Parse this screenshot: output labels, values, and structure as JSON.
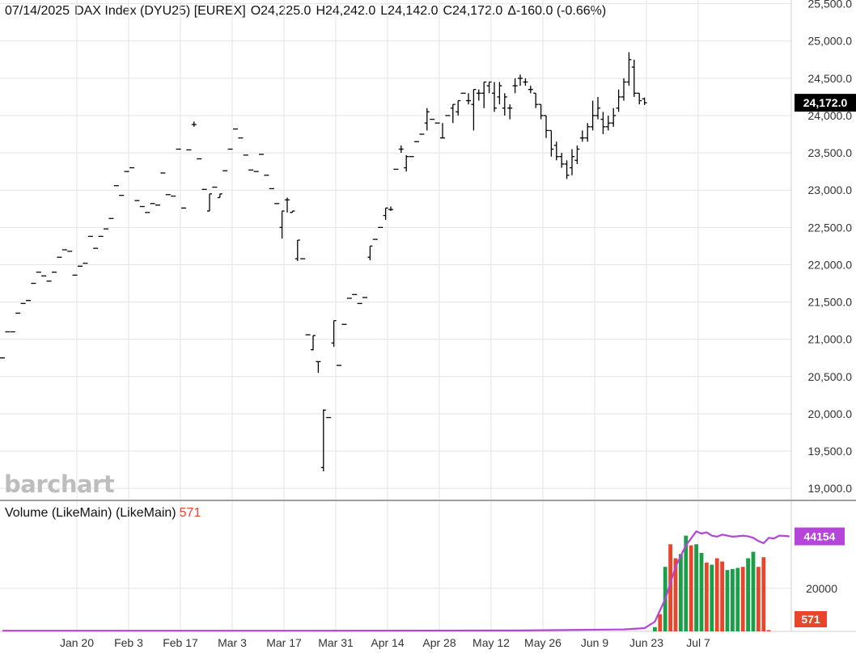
{
  "header": {
    "date": "07/14/2025",
    "symbol": "DAX Index (DYU25) [EUREX]",
    "open": "O24,225.0",
    "high": "H24,242.0",
    "low": "L24,142.0",
    "close": "C24,172.0",
    "change": "Δ-160.0 (-0.66%)"
  },
  "logo": "barchart",
  "volume_panel": {
    "title": "Volume (LikeMain)  (LikeMain)",
    "last_value": "571"
  },
  "colors": {
    "up": "#1a9e47",
    "down": "#e8452c",
    "ma": "#b445d8",
    "price_tag": "#000000",
    "grid": "#e3e3e3"
  },
  "chart_data": [
    {
      "type": "ohlc",
      "title": "",
      "y_range": [
        18850,
        25550
      ],
      "y_ticks": [
        "25,500.0",
        "25,000.0",
        "24,500.0",
        "24,000.0",
        "23,500.0",
        "23,000.0",
        "22,500.0",
        "22,000.0",
        "21,500.0",
        "21,000.0",
        "20,500.0",
        "20,000.0",
        "19,500.0",
        "19,000.0"
      ],
      "y_tick_values": [
        25500,
        25000,
        24500,
        24000,
        23500,
        23000,
        22500,
        22000,
        21500,
        21000,
        20500,
        20000,
        19500,
        19000
      ],
      "x_ticks": [
        "Jan 20",
        "Feb 3",
        "Feb 17",
        "Mar 3",
        "Mar 17",
        "Mar 31",
        "Apr 14",
        "Apr 28",
        "May 12",
        "May 26",
        "Jun 9",
        "Jun 23",
        "Jul 7"
      ],
      "x_tick_index": [
        10,
        20,
        30,
        40,
        50,
        60,
        70,
        80,
        90,
        100,
        110,
        120,
        130
      ],
      "last_price_label": "24,172.0",
      "last_price": 24172,
      "bars": [
        [
          20750,
          20750,
          20750,
          20750
        ],
        [
          21100,
          21100,
          21100,
          21100
        ],
        [
          21100,
          21100,
          21100,
          21100
        ],
        [
          21350,
          21350,
          21350,
          21350
        ],
        [
          21480,
          21480,
          21480,
          21480
        ],
        [
          21520,
          21520,
          21520,
          21520
        ],
        [
          21750,
          21750,
          21750,
          21750
        ],
        [
          21900,
          21900,
          21900,
          21900
        ],
        [
          21850,
          21850,
          21850,
          21850
        ],
        [
          21780,
          21780,
          21780,
          21780
        ],
        [
          21900,
          21900,
          21900,
          21900
        ],
        [
          22100,
          22100,
          22100,
          22100
        ],
        [
          22200,
          22200,
          22200,
          22200
        ],
        [
          22180,
          22180,
          22180,
          22180
        ],
        [
          21860,
          21860,
          21860,
          21860
        ],
        [
          21980,
          21980,
          21980,
          21980
        ],
        [
          22020,
          22020,
          22020,
          22020
        ],
        [
          22380,
          22380,
          22380,
          22380
        ],
        [
          22220,
          22220,
          22220,
          22220
        ],
        [
          22380,
          22380,
          22380,
          22380
        ],
        [
          22480,
          22480,
          22480,
          22480
        ],
        [
          22620,
          22620,
          22620,
          22620
        ],
        [
          23060,
          23060,
          23060,
          23060
        ],
        [
          22930,
          22930,
          22930,
          22930
        ],
        [
          23250,
          23250,
          23250,
          23250
        ],
        [
          23300,
          23300,
          23300,
          23300
        ],
        [
          22860,
          22860,
          22860,
          22860
        ],
        [
          22780,
          22780,
          22780,
          22780
        ],
        [
          22700,
          22700,
          22700,
          22700
        ],
        [
          22820,
          22820,
          22820,
          22820
        ],
        [
          22800,
          22800,
          22800,
          22800
        ],
        [
          23230,
          23230,
          23230,
          23230
        ],
        [
          22940,
          22940,
          22940,
          22940
        ],
        [
          22920,
          22920,
          22920,
          22920
        ],
        [
          23550,
          23550,
          23550,
          23550
        ],
        [
          22760,
          22760,
          22760,
          22760
        ],
        [
          23540,
          23540,
          23540,
          23540
        ],
        [
          23880,
          23880,
          23920,
          23850
        ],
        [
          23420,
          23420,
          23420,
          23420
        ],
        [
          23010,
          23010,
          23010,
          23010
        ],
        [
          22720,
          22950,
          22950,
          22720
        ],
        [
          23040,
          23040,
          23040,
          23040
        ],
        [
          22900,
          22950,
          22950,
          22900
        ],
        [
          23260,
          23260,
          23260,
          23260
        ],
        [
          23550,
          23550,
          23550,
          23550
        ],
        [
          23820,
          23820,
          23820,
          23820
        ],
        [
          23700,
          23700,
          23700,
          23700
        ],
        [
          23470,
          23470,
          23470,
          23470
        ],
        [
          23270,
          23270,
          23270,
          23270
        ],
        [
          23250,
          23250,
          23250,
          23250
        ],
        [
          23480,
          23480,
          23480,
          23480
        ],
        [
          23200,
          23200,
          23200,
          23200
        ],
        [
          23020,
          23020,
          23020,
          23020
        ],
        [
          22820,
          22820,
          22820,
          22820
        ],
        [
          22500,
          22720,
          22720,
          22350
        ],
        [
          22870,
          22870,
          22900,
          22700
        ],
        [
          22700,
          22720,
          22720,
          22700
        ],
        [
          22080,
          22330,
          22330,
          22050
        ],
        [
          22080,
          22080,
          22080,
          22080
        ],
        [
          21060,
          21060,
          21060,
          21060
        ],
        [
          20860,
          21050,
          21050,
          20850
        ],
        [
          20700,
          20700,
          20700,
          20550
        ],
        [
          19280,
          20050,
          20060,
          19230
        ],
        [
          19950,
          19950,
          19950,
          19950
        ],
        [
          20950,
          21250,
          21250,
          20900
        ],
        [
          20650,
          20650,
          20650,
          20650
        ],
        [
          21200,
          21200,
          21200,
          21200
        ],
        [
          21550,
          21550,
          21550,
          21550
        ],
        [
          21600,
          21600,
          21600,
          21600
        ],
        [
          21480,
          21480,
          21480,
          21480
        ],
        [
          21560,
          21560,
          21560,
          21560
        ],
        [
          22100,
          22250,
          22250,
          22060
        ],
        [
          22340,
          22340,
          22340,
          22340
        ],
        [
          22500,
          22500,
          22500,
          22500
        ],
        [
          22660,
          22760,
          22760,
          22600
        ],
        [
          22740,
          22740,
          22780,
          22720
        ],
        [
          23280,
          23280,
          23280,
          23280
        ],
        [
          23550,
          23550,
          23600,
          23500
        ],
        [
          23300,
          23450,
          23470,
          23250
        ],
        [
          23450,
          23450,
          23450,
          23450
        ],
        [
          23650,
          23650,
          23650,
          23650
        ],
        [
          23750,
          23750,
          23750,
          23750
        ],
        [
          23900,
          24050,
          24100,
          23800
        ],
        [
          23950,
          23950,
          23950,
          23950
        ],
        [
          23900,
          23900,
          23900,
          23900
        ],
        [
          23700,
          23700,
          23900,
          23700
        ],
        [
          24000,
          24000,
          24000,
          24000
        ],
        [
          24100,
          24150,
          24150,
          23900
        ],
        [
          24050,
          24200,
          24200,
          24000
        ],
        [
          24300,
          24300,
          24300,
          24300
        ],
        [
          24200,
          24200,
          24300,
          24150
        ],
        [
          24150,
          24350,
          24350,
          23800
        ],
        [
          24300,
          24300,
          24350,
          24200
        ],
        [
          24300,
          24450,
          24450,
          24100
        ],
        [
          24400,
          24450,
          24450,
          24300
        ],
        [
          24300,
          24100,
          24450,
          24050
        ],
        [
          24250,
          24400,
          24450,
          24150
        ],
        [
          24100,
          24250,
          24300,
          24000
        ],
        [
          24100,
          24100,
          24150,
          23950
        ],
        [
          24400,
          24400,
          24500,
          24300
        ],
        [
          24500,
          24500,
          24550,
          24400
        ],
        [
          24450,
          24450,
          24500,
          24400
        ],
        [
          24350,
          24350,
          24400,
          24300
        ],
        [
          24300,
          24150,
          24300,
          24100
        ],
        [
          24150,
          24000,
          24150,
          23950
        ],
        [
          24000,
          23800,
          24000,
          23700
        ],
        [
          23800,
          23550,
          23800,
          23450
        ],
        [
          23600,
          23450,
          23650,
          23400
        ],
        [
          23450,
          23350,
          23500,
          23300
        ],
        [
          23350,
          23200,
          23400,
          23150
        ],
        [
          23300,
          23450,
          23550,
          23200
        ],
        [
          23400,
          23550,
          23600,
          23350
        ],
        [
          23700,
          23700,
          23800,
          23650
        ],
        [
          23700,
          23850,
          23900,
          23650
        ],
        [
          23850,
          24000,
          24200,
          23800
        ],
        [
          24000,
          24100,
          24250,
          23950
        ],
        [
          23950,
          23850,
          24050,
          23750
        ],
        [
          23850,
          23900,
          24000,
          23800
        ],
        [
          23900,
          24000,
          24100,
          23850
        ],
        [
          24100,
          24250,
          24350,
          24050
        ],
        [
          24250,
          24450,
          24500,
          24200
        ],
        [
          24450,
          24750,
          24850,
          24400
        ],
        [
          24650,
          24300,
          24750,
          24250
        ],
        [
          24300,
          24200,
          24300,
          24150
        ],
        [
          24225,
          24172,
          24242,
          24142
        ]
      ]
    },
    {
      "type": "bar",
      "title": "Volume (LikeMain)  (LikeMain)",
      "y_range": [
        0,
        53000
      ],
      "y_ticks": [
        "20000"
      ],
      "y_tick_values": [
        20000
      ],
      "ma_label": "44154",
      "last_label": "571",
      "bar_start_index": 126,
      "volumes": [
        2000,
        8000,
        30000,
        40500,
        34000,
        36000,
        44500,
        40000,
        40500,
        36500,
        32000,
        31000,
        34000,
        32500,
        28500,
        29000,
        29500,
        30000,
        34000,
        37000,
        30000,
        34500,
        571
      ],
      "up_flags": [
        true,
        false,
        true,
        false,
        false,
        true,
        true,
        false,
        true,
        true,
        false,
        true,
        false,
        false,
        true,
        true,
        true,
        false,
        true,
        true,
        false,
        false,
        false
      ],
      "ma_points": [
        [
          0,
          300
        ],
        [
          60,
          300
        ],
        [
          100,
          400
        ],
        [
          120,
          900
        ],
        [
          124,
          1500
        ],
        [
          126,
          4500
        ],
        [
          128,
          15000
        ],
        [
          130,
          30000
        ],
        [
          132,
          40000
        ],
        [
          134,
          46500
        ],
        [
          135,
          45500
        ],
        [
          136,
          46000
        ],
        [
          137,
          44500
        ],
        [
          138,
          44000
        ],
        [
          139,
          45000
        ],
        [
          140,
          44500
        ],
        [
          141,
          44000
        ],
        [
          142,
          44200
        ],
        [
          143,
          44500
        ],
        [
          144,
          44200
        ],
        [
          145,
          43500
        ],
        [
          146,
          42000
        ],
        [
          147,
          41000
        ],
        [
          148,
          43500
        ],
        [
          149,
          43200
        ],
        [
          150,
          44500
        ],
        [
          151,
          44400
        ],
        [
          152,
          44154
        ]
      ]
    }
  ]
}
